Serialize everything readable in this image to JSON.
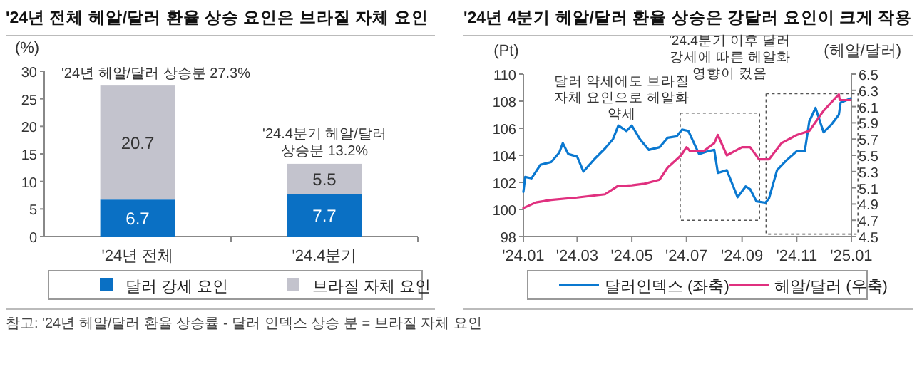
{
  "chart_data": [
    {
      "type": "bar",
      "stacked": true,
      "title": "'24년 전체 헤알/달러 환율 상승 요인은 브라질 자체 요인",
      "ylabel": "(%)",
      "categories": [
        "'24년 전체",
        "'24.4분기"
      ],
      "series": [
        {
          "name": "달러 강세 요인",
          "color": "#0a70c4",
          "values": [
            6.7,
            7.7
          ]
        },
        {
          "name": "브라질 자체 요인",
          "color": "#c3c3cd",
          "values": [
            20.7,
            5.5
          ]
        }
      ],
      "ylim": [
        0,
        30
      ],
      "yticks": [
        0,
        5,
        10,
        15,
        20,
        25,
        30
      ],
      "data_labels": true,
      "legend": "bottom",
      "annotations": [
        {
          "text": "'24년 헤알/달러 상승분 27.3%",
          "x": "'24년 전체",
          "y": 27.3
        },
        {
          "text": "'24.4분기 헤알/달러 상승분 13.2%",
          "x": "'24.4분기",
          "y": 13.2
        },
        "참고: '24년 헤알/달러 환율 상승률 - 달러 인덱스 상승 분 = 브라질 자체 요인"
      ]
    },
    {
      "type": "line",
      "title": "'24년 4분기 헤알/달러 환율 상승은 강달러 요인이 크게 작용",
      "ylabel": "(Pt)",
      "y2label": "(헤알/달러)",
      "series": [
        {
          "name": "달러인덱스 (좌축)",
          "color": "#0a78d0",
          "x": [
            "2024-01-01",
            "2024-01-03",
            "2024-01-10",
            "2024-01-20",
            "2024-02-01",
            "2024-02-10",
            "2024-02-14",
            "2024-02-20",
            "2024-03-01",
            "2024-03-08",
            "2024-03-20",
            "2024-04-01",
            "2024-04-10",
            "2024-04-16",
            "2024-04-25",
            "2024-05-01",
            "2024-05-10",
            "2024-05-20",
            "2024-06-01",
            "2024-06-10",
            "2024-06-20",
            "2024-06-26",
            "2024-07-03",
            "2024-07-15",
            "2024-07-25",
            "2024-08-01",
            "2024-08-05",
            "2024-08-15",
            "2024-08-27",
            "2024-09-05",
            "2024-09-10",
            "2024-09-17",
            "2024-09-27",
            "2024-10-01",
            "2024-10-10",
            "2024-10-20",
            "2024-11-01",
            "2024-11-10",
            "2024-11-15",
            "2024-11-22",
            "2024-12-01",
            "2024-12-10",
            "2024-12-18",
            "2024-12-20",
            "2024-12-31"
          ],
          "values": [
            101.3,
            102.4,
            102.3,
            103.3,
            103.5,
            104.2,
            104.9,
            104.1,
            103.9,
            102.8,
            103.7,
            104.5,
            105.2,
            106.2,
            105.8,
            106.2,
            105.2,
            104.4,
            104.6,
            105.3,
            105.4,
            105.9,
            105.8,
            104.1,
            104.3,
            104.4,
            102.7,
            102.9,
            100.9,
            101.7,
            101.5,
            100.6,
            100.5,
            100.8,
            102.9,
            103.6,
            104.3,
            104.3,
            106.5,
            107.5,
            105.7,
            106.3,
            107.0,
            107.9,
            108.2
          ]
        },
        {
          "name": "헤알/달러 (우축)",
          "color": "#e0307f",
          "axis": "y2",
          "x": [
            "2024-01-01",
            "2024-01-15",
            "2024-02-01",
            "2024-03-01",
            "2024-04-01",
            "2024-04-15",
            "2024-05-01",
            "2024-05-15",
            "2024-06-01",
            "2024-06-10",
            "2024-06-25",
            "2024-07-01",
            "2024-07-05",
            "2024-07-20",
            "2024-08-01",
            "2024-08-05",
            "2024-08-15",
            "2024-09-01",
            "2024-09-10",
            "2024-09-20",
            "2024-10-01",
            "2024-10-15",
            "2024-11-01",
            "2024-11-15",
            "2024-12-01",
            "2024-12-18",
            "2024-12-19",
            "2024-12-31"
          ],
          "values": [
            4.85,
            4.92,
            4.95,
            4.98,
            5.02,
            5.12,
            5.13,
            5.15,
            5.2,
            5.35,
            5.5,
            5.6,
            5.55,
            5.55,
            5.65,
            5.75,
            5.5,
            5.6,
            5.6,
            5.45,
            5.45,
            5.65,
            5.75,
            5.8,
            6.05,
            6.25,
            6.18,
            6.18
          ]
        }
      ],
      "xlim": [
        "2024-01-01",
        "2025-01-01"
      ],
      "xticks": [
        {
          "value": "2024-01-01",
          "label": "'24.01"
        },
        {
          "value": "2024-03-01",
          "label": "'24.03"
        },
        {
          "value": "2024-05-01",
          "label": "'24.05"
        },
        {
          "value": "2024-07-01",
          "label": "'24.07"
        },
        {
          "value": "2024-09-01",
          "label": "'24.09"
        },
        {
          "value": "2024-11-01",
          "label": "'24.11"
        },
        {
          "value": "2025-01-01",
          "label": "'25.01"
        }
      ],
      "ylim": [
        98,
        110
      ],
      "yticks": [
        98,
        100,
        102,
        104,
        106,
        108,
        110
      ],
      "y2lim": [
        4.5,
        6.5
      ],
      "y2ticks": [
        4.5,
        4.7,
        4.9,
        5.1,
        5.3,
        5.5,
        5.7,
        5.9,
        6.1,
        6.3,
        6.5
      ],
      "legend": "bottom",
      "annotations": [
        "달러 약세에도 브라질 자체 요인으로 헤알화 약세",
        "'24.4분기 이후 달러 강세에 따른 헤알화 영향이 컸음"
      ]
    }
  ]
}
